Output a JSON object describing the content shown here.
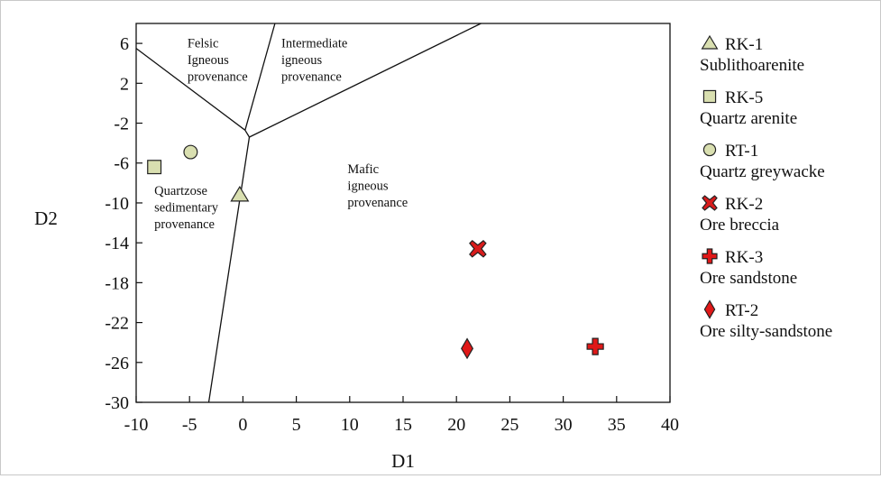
{
  "chart_data": {
    "type": "scatter",
    "xlabel": "D1",
    "ylabel": "D2",
    "xlim": [
      -10,
      40
    ],
    "ylim": [
      -30,
      8
    ],
    "xticks": [
      "-10",
      "-5",
      "0",
      "5",
      "10",
      "15",
      "20",
      "25",
      "30",
      "35",
      "40"
    ],
    "yticks": [
      "6",
      "2",
      "-2",
      "-6",
      "-10",
      "-14",
      "-18",
      "-22",
      "-26",
      "-30"
    ],
    "xtick_values": [
      -10,
      -5,
      0,
      5,
      10,
      15,
      20,
      25,
      30,
      35,
      40
    ],
    "ytick_values": [
      6,
      2,
      -2,
      -6,
      -10,
      -14,
      -18,
      -22,
      -26,
      -30
    ],
    "regions": [
      {
        "lines": [
          "Felsic",
          "Igneous",
          "provenance"
        ],
        "x": -5.2,
        "y": 5.6
      },
      {
        "lines": [
          "Intermediate",
          "igneous",
          "provenance"
        ],
        "x": 3.6,
        "y": 5.6
      },
      {
        "lines": [
          "Mafic",
          "igneous",
          "provenance"
        ],
        "x": 9.8,
        "y": -7.0
      },
      {
        "lines": [
          "Quartzose",
          "sedimentary",
          "provenance"
        ],
        "x": -8.3,
        "y": -9.2
      }
    ],
    "boundaries": [
      {
        "points": [
          [
            -10,
            5.5
          ],
          [
            0.2,
            -2.7
          ]
        ]
      },
      {
        "points": [
          [
            3.0,
            8
          ],
          [
            0.2,
            -2.7
          ]
        ]
      },
      {
        "points": [
          [
            0.2,
            -2.7
          ],
          [
            0.6,
            -3.4
          ]
        ]
      },
      {
        "points": [
          [
            0.6,
            -3.4
          ],
          [
            22.3,
            8
          ]
        ]
      },
      {
        "points": [
          [
            0.6,
            -3.4
          ],
          [
            -3.2,
            -30
          ]
        ]
      }
    ],
    "series": [
      {
        "name": "RK-1",
        "description": "Sublithoarenite",
        "marker": "triangle",
        "color": "#d9dfb0",
        "x": -0.3,
        "y": -9.2
      },
      {
        "name": "RK-5",
        "description": "Quartz arenite",
        "marker": "square",
        "color": "#d9dfb0",
        "x": -8.3,
        "y": -6.4
      },
      {
        "name": "RT-1",
        "description": "Quartz greywacke",
        "marker": "circle",
        "color": "#d9dfb0",
        "x": -4.9,
        "y": -4.9
      },
      {
        "name": "RK-2",
        "description": "Ore breccia",
        "marker": "x",
        "color": "#d81c1c",
        "x": 22.0,
        "y": -14.6
      },
      {
        "name": "RK-3",
        "description": "Ore sandstone",
        "marker": "cross",
        "color": "#e01818",
        "x": 33.0,
        "y": -24.4
      },
      {
        "name": "RT-2",
        "description": "Ore silty-sandstone",
        "marker": "diamond",
        "color": "#e01818",
        "x": 21.0,
        "y": -24.6
      }
    ]
  }
}
